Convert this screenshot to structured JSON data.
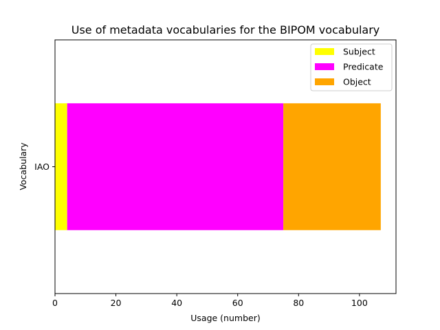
{
  "chart_data": {
    "type": "bar",
    "orientation": "horizontal",
    "stacked": true,
    "title": "Use of metadata vocabularies for the BIPOM vocabulary",
    "xlabel": "Usage (number)",
    "ylabel": "Vocabulary",
    "categories": [
      "IAO"
    ],
    "xlim": [
      0,
      112
    ],
    "xticks": [
      0,
      20,
      40,
      60,
      80,
      100
    ],
    "grid": false,
    "legend_position": "top-right",
    "series": [
      {
        "name": "Subject",
        "values": [
          4
        ],
        "color": "#ffff00"
      },
      {
        "name": "Predicate",
        "values": [
          71
        ],
        "color": "#ff00ff"
      },
      {
        "name": "Object",
        "values": [
          32
        ],
        "color": "#ffa500"
      }
    ]
  }
}
